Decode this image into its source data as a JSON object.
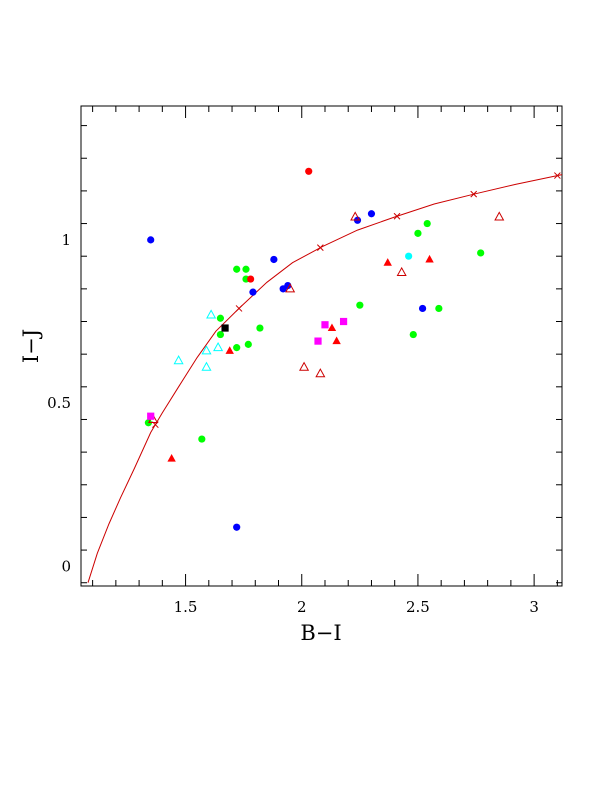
{
  "chart_data": {
    "type": "scatter",
    "title": "",
    "xlabel": "B−I",
    "ylabel": "I−J",
    "xlim": [
      1.05,
      3.12
    ],
    "ylim": [
      -0.06,
      1.41
    ],
    "x_ticks": [
      "1.5",
      "2",
      "2.5",
      "3"
    ],
    "y_ticks": [
      "0",
      "0.5",
      "1"
    ],
    "x_tick_values": [
      1.5,
      2,
      2.5,
      3
    ],
    "y_tick_values": [
      0,
      0.5,
      1
    ],
    "grid": false,
    "colors": {
      "red": "#ff0000",
      "dark_red": "#cc0000",
      "blue": "#0000ff",
      "green": "#00ff00",
      "cyan": "#00ffff",
      "magenta": "#ff00ff",
      "black": "#000000"
    },
    "series": [
      {
        "marker": "circle",
        "color": "#0000ff",
        "points": [
          [
            1.35,
            1.0
          ],
          [
            1.88,
            0.94
          ],
          [
            1.79,
            0.84
          ],
          [
            1.92,
            0.85
          ],
          [
            1.94,
            0.86
          ],
          [
            2.24,
            1.06
          ],
          [
            2.3,
            1.08
          ],
          [
            2.52,
            0.79
          ],
          [
            1.72,
            0.12
          ]
        ]
      },
      {
        "marker": "circle",
        "color": "#00ff00",
        "points": [
          [
            1.34,
            0.44
          ],
          [
            1.57,
            0.39
          ],
          [
            1.65,
            0.71
          ],
          [
            1.65,
            0.76
          ],
          [
            1.72,
            0.91
          ],
          [
            1.76,
            0.91
          ],
          [
            1.76,
            0.88
          ],
          [
            1.72,
            0.67
          ],
          [
            1.77,
            0.68
          ],
          [
            1.82,
            0.73
          ],
          [
            2.25,
            0.8
          ],
          [
            2.5,
            1.02
          ],
          [
            2.54,
            1.05
          ],
          [
            2.48,
            0.71
          ],
          [
            2.59,
            0.79
          ],
          [
            2.77,
            0.96
          ]
        ]
      },
      {
        "marker": "circle",
        "color": "#ff0000",
        "points": [
          [
            2.03,
            1.21
          ],
          [
            1.78,
            0.88
          ]
        ]
      },
      {
        "marker": "circle",
        "color": "#00ffff",
        "points": [
          [
            2.46,
            0.95
          ]
        ]
      },
      {
        "marker": "filled-triangle",
        "color": "#ff0000",
        "points": [
          [
            1.44,
            0.33
          ],
          [
            1.69,
            0.66
          ],
          [
            2.13,
            0.73
          ],
          [
            2.15,
            0.69
          ],
          [
            2.37,
            0.93
          ],
          [
            2.55,
            0.94
          ]
        ]
      },
      {
        "marker": "open-triangle",
        "color": "#cc0000",
        "points": [
          [
            1.36,
            0.45
          ],
          [
            1.95,
            0.85
          ],
          [
            2.01,
            0.61
          ],
          [
            2.08,
            0.59
          ],
          [
            2.23,
            1.07
          ],
          [
            2.43,
            0.9
          ],
          [
            2.85,
            1.07
          ]
        ]
      },
      {
        "marker": "open-triangle",
        "color": "#00ffff",
        "points": [
          [
            1.47,
            0.63
          ],
          [
            1.59,
            0.61
          ],
          [
            1.59,
            0.66
          ],
          [
            1.61,
            0.77
          ],
          [
            1.64,
            0.67
          ]
        ]
      },
      {
        "marker": "square",
        "color": "#ff00ff",
        "points": [
          [
            1.35,
            0.46
          ],
          [
            2.07,
            0.69
          ],
          [
            2.1,
            0.74
          ],
          [
            2.18,
            0.75
          ]
        ]
      },
      {
        "marker": "square",
        "color": "#000000",
        "points": [
          [
            1.67,
            0.73
          ]
        ]
      }
    ],
    "curve": {
      "color": "#cc0000",
      "points": [
        [
          1.08,
          -0.05
        ],
        [
          1.12,
          0.04
        ],
        [
          1.17,
          0.13
        ],
        [
          1.22,
          0.21
        ],
        [
          1.28,
          0.3
        ],
        [
          1.35,
          0.41
        ],
        [
          1.4,
          0.47
        ],
        [
          1.47,
          0.55
        ],
        [
          1.55,
          0.64
        ],
        [
          1.63,
          0.72
        ],
        [
          1.73,
          0.79
        ],
        [
          1.85,
          0.87
        ],
        [
          1.96,
          0.93
        ],
        [
          2.09,
          0.98
        ],
        [
          2.24,
          1.03
        ],
        [
          2.4,
          1.07
        ],
        [
          2.57,
          1.11
        ],
        [
          2.74,
          1.14
        ],
        [
          2.92,
          1.17
        ],
        [
          3.12,
          1.2
        ]
      ],
      "cross_markers_x": [
        1.37,
        1.73,
        2.08,
        2.41,
        2.74,
        3.1
      ]
    }
  }
}
